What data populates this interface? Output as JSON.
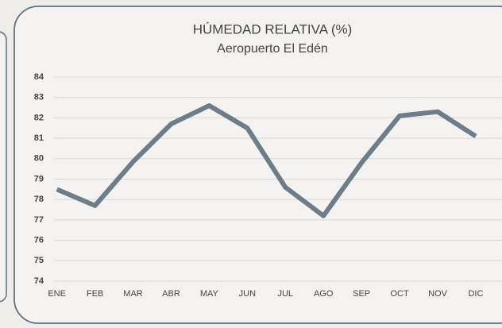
{
  "chart_data": {
    "type": "line",
    "title": "HÚMEDAD RELATIVA (%)",
    "subtitle": "Aeropuerto El Edén",
    "categories": [
      "ENE",
      "FEB",
      "MAR",
      "ABR",
      "MAY",
      "JUN",
      "JUL",
      "AGO",
      "SEP",
      "OCT",
      "NOV",
      "DIC"
    ],
    "series": [
      {
        "name": "Humedad relativa",
        "color": "#6e7e89",
        "values": [
          78.5,
          77.7,
          79.85,
          81.7,
          82.6,
          81.5,
          78.6,
          77.2,
          79.8,
          82.1,
          82.3,
          81.1
        ]
      }
    ],
    "ylim": [
      74,
      84
    ],
    "yticks": [
      74,
      75,
      76,
      77,
      78,
      79,
      80,
      81,
      82,
      83,
      84
    ],
    "grid": true
  }
}
